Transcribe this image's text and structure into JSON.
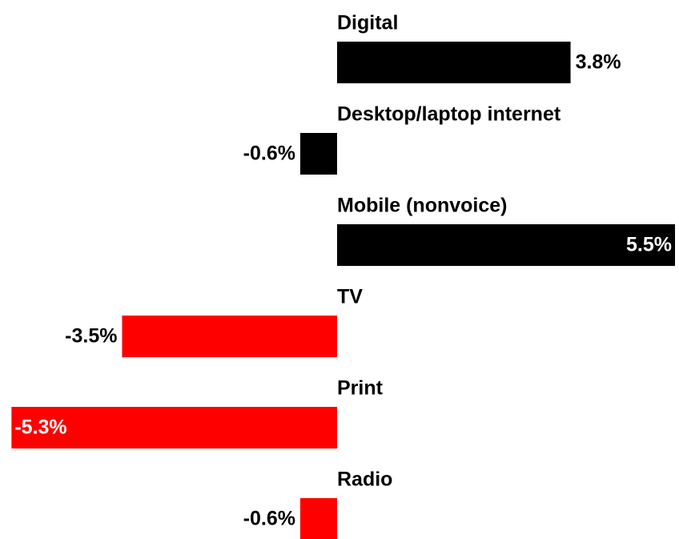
{
  "chart_data": {
    "type": "bar",
    "orientation": "horizontal",
    "categories": [
      "Digital",
      "Desktop/laptop internet",
      "Mobile (nonvoice)",
      "TV",
      "Print",
      "Radio"
    ],
    "values": [
      3.8,
      -0.6,
      5.5,
      -3.5,
      -5.3,
      -0.6
    ],
    "value_labels": [
      "3.8%",
      "-0.6%",
      "5.5%",
      "-3.5%",
      "-5.3%",
      "-0.6%"
    ],
    "colors": [
      "#000000",
      "#000000",
      "#000000",
      "#ff0000",
      "#ff0000",
      "#ff0000"
    ]
  }
}
